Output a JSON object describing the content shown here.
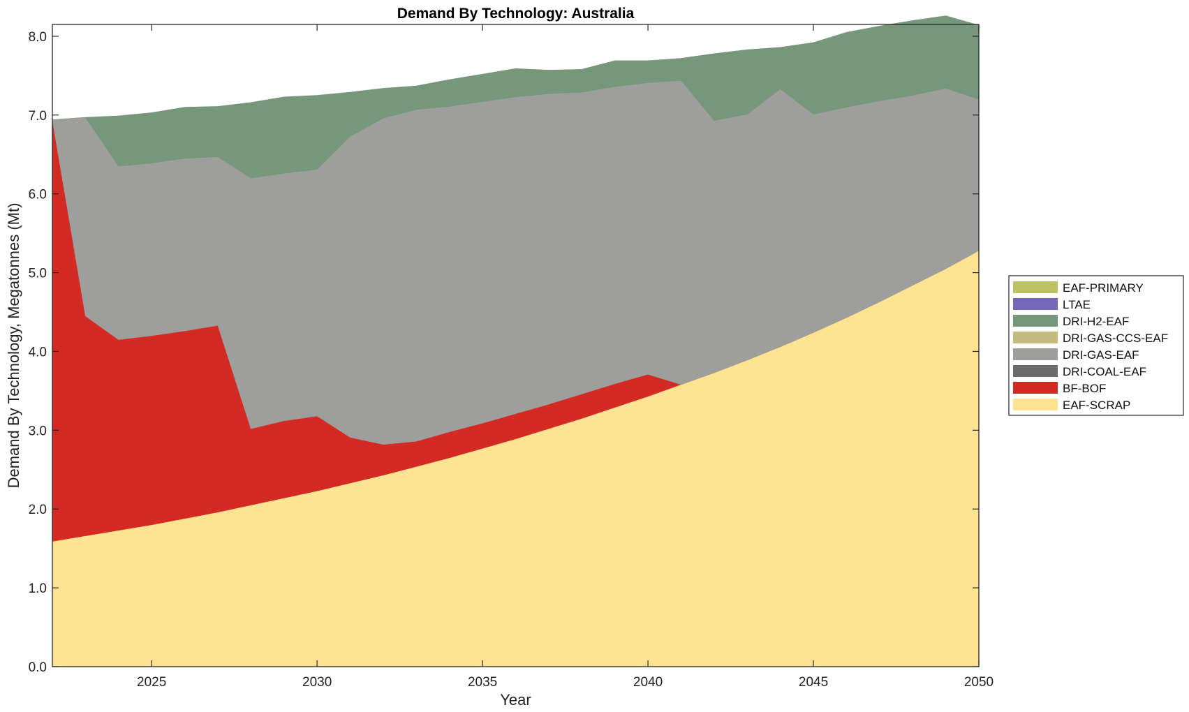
{
  "chart_data": {
    "type": "area",
    "stacked": true,
    "title": "Demand By Technology: Australia",
    "xlabel": "Year",
    "ylabel": "Demand By Technology, Megatonnes (Mt)",
    "xlim": [
      2022,
      2050
    ],
    "ylim": [
      0,
      8.15
    ],
    "xticks": [
      2025,
      2030,
      2035,
      2040,
      2045,
      2050
    ],
    "yticks": [
      0,
      1,
      2,
      3,
      4,
      5,
      6,
      7,
      8
    ],
    "ytick_labels": [
      "0.0",
      "1.0",
      "2.0",
      "3.0",
      "4.0",
      "5.0",
      "6.0",
      "7.0",
      "8.0"
    ],
    "grid": false,
    "legend_position": "right",
    "x": [
      2022,
      2023,
      2024,
      2025,
      2026,
      2027,
      2028,
      2029,
      2030,
      2031,
      2032,
      2033,
      2034,
      2035,
      2036,
      2037,
      2038,
      2039,
      2040,
      2041,
      2042,
      2043,
      2044,
      2045,
      2046,
      2047,
      2048,
      2049,
      2050
    ],
    "series": [
      {
        "name": "EAF-SCRAP",
        "color": "#fee392",
        "values": [
          1.59,
          1.66,
          1.73,
          1.8,
          1.88,
          1.96,
          2.05,
          2.14,
          2.23,
          2.33,
          2.43,
          2.54,
          2.65,
          2.77,
          2.89,
          3.02,
          3.15,
          3.29,
          3.43,
          3.58,
          3.73,
          3.89,
          4.06,
          4.24,
          4.43,
          4.63,
          4.84,
          5.05,
          5.28
        ]
      },
      {
        "name": "BF-BOF",
        "color": "#d42a24",
        "values": [
          5.35,
          2.79,
          2.42,
          2.4,
          2.38,
          2.37,
          0.97,
          0.98,
          0.95,
          0.58,
          0.39,
          0.32,
          0.33,
          0.32,
          0.32,
          0.31,
          0.31,
          0.3,
          0.28,
          0.0,
          0,
          0,
          0,
          0,
          0,
          0,
          0,
          0,
          0
        ]
      },
      {
        "name": "DRI-COAL-EAF",
        "color": "#6b6b6b",
        "values": [
          0,
          0,
          0,
          0,
          0,
          0,
          0,
          0,
          0,
          0,
          0,
          0,
          0,
          0,
          0,
          0,
          0,
          0,
          0,
          0,
          0,
          0,
          0,
          0,
          0,
          0,
          0,
          0,
          0
        ]
      },
      {
        "name": "DRI-GAS-EAF",
        "color": "#9e9e9c",
        "values": [
          0.0,
          2.52,
          2.2,
          2.19,
          2.19,
          2.14,
          3.18,
          3.14,
          3.13,
          3.82,
          4.14,
          4.21,
          4.13,
          4.08,
          4.02,
          3.94,
          3.83,
          3.77,
          3.7,
          3.86,
          3.2,
          3.12,
          3.27,
          2.77,
          2.67,
          2.55,
          2.41,
          2.29,
          1.92
        ]
      },
      {
        "name": "DRI-GAS-CCS-EAF",
        "color": "#c4bb7f",
        "values": [
          0,
          0,
          0,
          0,
          0,
          0,
          0,
          0,
          0,
          0,
          0,
          0,
          0,
          0,
          0,
          0,
          0,
          0,
          0,
          0,
          0,
          0,
          0,
          0,
          0,
          0,
          0,
          0,
          0
        ]
      },
      {
        "name": "DRI-H2-EAF",
        "color": "#76977b",
        "values": [
          0.0,
          0.0,
          0.64,
          0.64,
          0.65,
          0.64,
          0.96,
          0.97,
          0.94,
          0.56,
          0.38,
          0.3,
          0.34,
          0.35,
          0.36,
          0.3,
          0.29,
          0.33,
          0.28,
          0.28,
          0.85,
          0.82,
          0.53,
          0.91,
          0.95,
          0.95,
          0.95,
          0.92,
          0.94
        ]
      },
      {
        "name": "LTAE",
        "color": "#7466b9",
        "values": [
          0,
          0,
          0,
          0,
          0,
          0,
          0,
          0,
          0,
          0,
          0,
          0,
          0,
          0,
          0,
          0,
          0,
          0,
          0,
          0,
          0,
          0,
          0,
          0,
          0,
          0,
          0,
          0,
          0
        ]
      },
      {
        "name": "EAF-PRIMARY",
        "color": "#bcc262",
        "values": [
          0,
          0,
          0,
          0,
          0,
          0,
          0,
          0,
          0,
          0,
          0,
          0,
          0,
          0,
          0,
          0,
          0,
          0,
          0,
          0,
          0,
          0,
          0,
          0,
          0,
          0,
          0,
          0,
          0
        ]
      }
    ],
    "legend_order": [
      "EAF-PRIMARY",
      "LTAE",
      "DRI-H2-EAF",
      "DRI-GAS-CCS-EAF",
      "DRI-GAS-EAF",
      "DRI-COAL-EAF",
      "BF-BOF",
      "EAF-SCRAP"
    ]
  }
}
